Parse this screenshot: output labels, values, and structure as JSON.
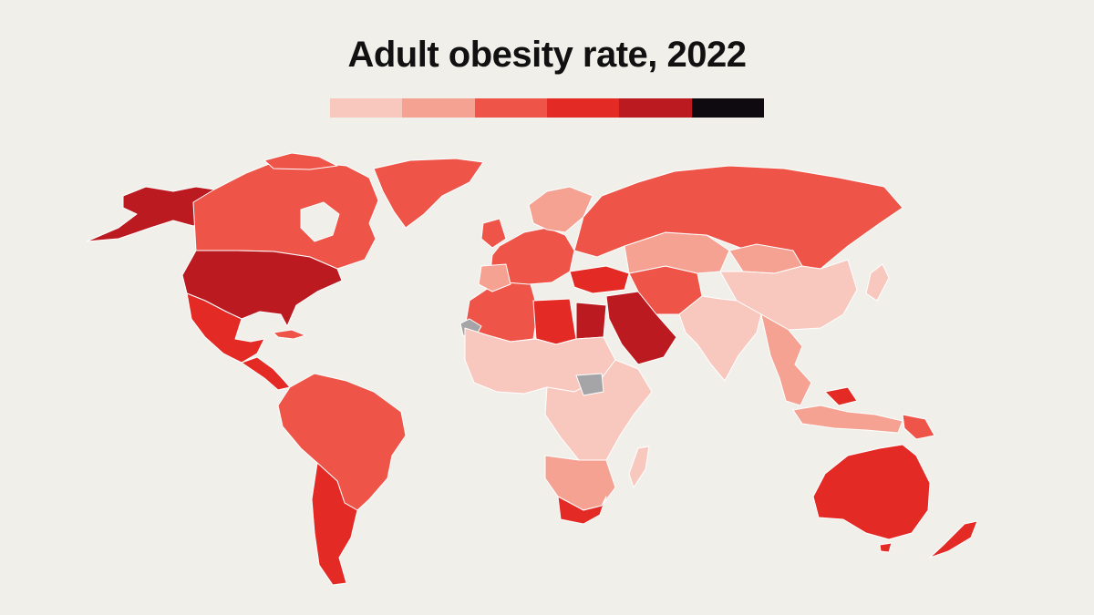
{
  "title": "Adult obesity rate, 2022",
  "legend": {
    "colors": [
      "#f8c7bd",
      "#f5a293",
      "#ee5448",
      "#e32a24",
      "#bb1a20",
      "#0e0a0f"
    ]
  },
  "colors": {
    "background": "#f1efea",
    "no_data": "#a5a5a7",
    "border": "#ffffff"
  }
}
